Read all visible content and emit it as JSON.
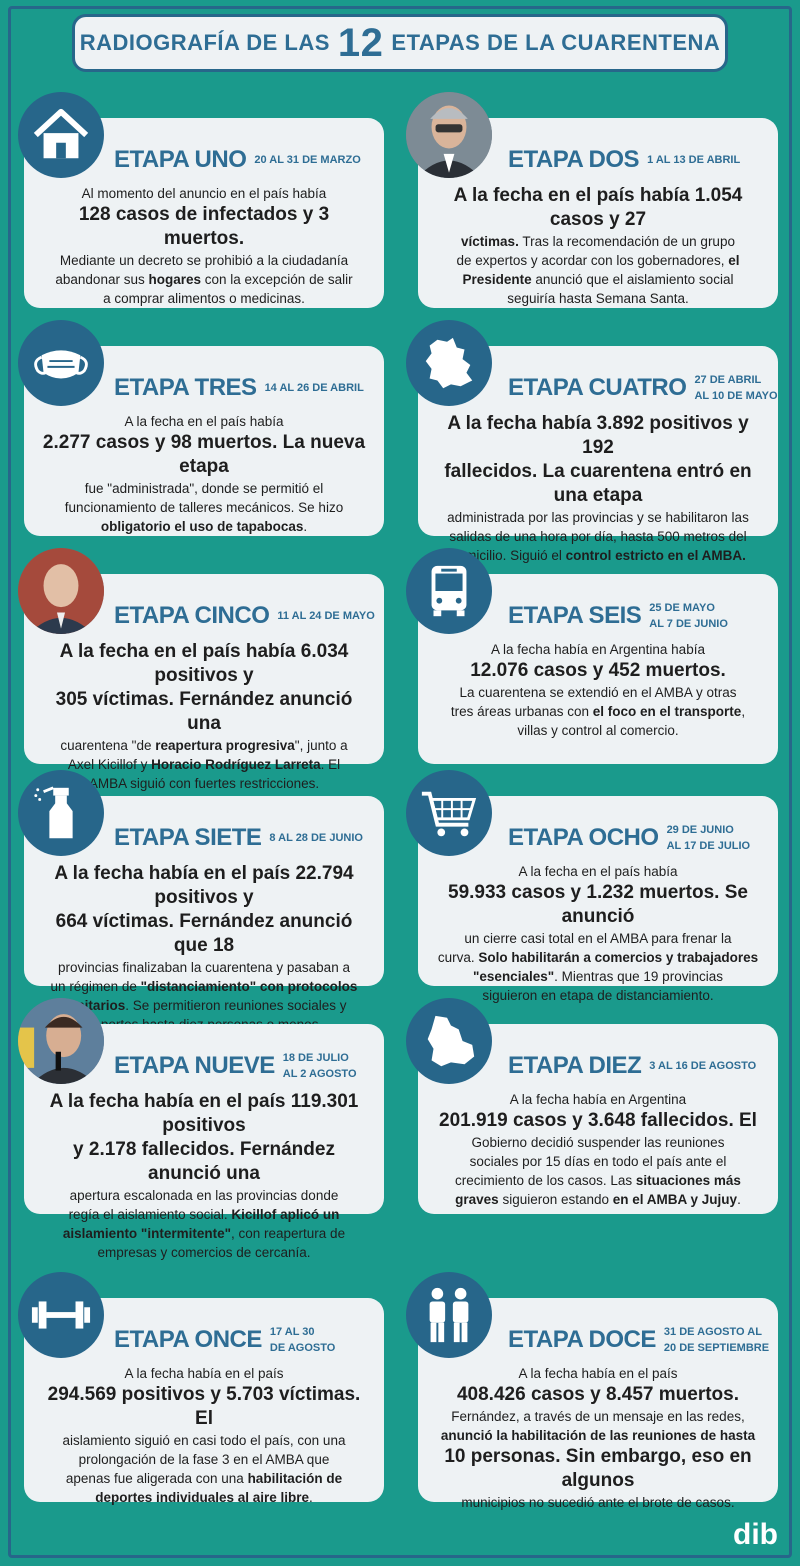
{
  "title": {
    "pre": "RADIOGRAFÍA DE LAS",
    "number": "12",
    "post": "ETAPAS DE LA CUARENTENA"
  },
  "logo": "dib",
  "stages": [
    {
      "name": "ETAPA UNO",
      "dates": [
        "20 AL 31 DE MARZO"
      ],
      "icon": "house-icon",
      "text": "Al momento del anuncio en el país había|**128 casos de infectados** y **3 muertos.**|Mediante un decreto se prohibió a la ciudadanía|abandonar sus **hogares** con la excepción de salir|a comprar alimentos o medicinas."
    },
    {
      "name": "ETAPA DOS",
      "dates": [
        "1 AL 13 DE ABRIL"
      ],
      "icon": "photo-president",
      "text": "A la fecha en el país había **1.054 casos y 27**|**víctimas.** Tras la recomendación de un grupo|de expertos y acordar con los gobernadores, **el**|**Presidente** anunció que el aislamiento social|seguiría hasta Semana Santa."
    },
    {
      "name": "ETAPA TRES",
      "dates": [
        "14 AL 26 DE ABRIL"
      ],
      "icon": "face-mask-icon",
      "text": "A la fecha en el país había|**2.277 casos y 98 muertos.** La nueva etapa|fue \"administrada\", donde se permitió el|funcionamiento de talleres mecánicos. Se hizo|**obligatorio el uso de tapabocas**."
    },
    {
      "name": "ETAPA CUATRO",
      "dates": [
        "27 DE ABRIL",
        "AL 10 DE MAYO"
      ],
      "icon": "province-map-icon",
      "text": "A la fecha había **3.892 positivos y 192**|**fallecidos.** La cuarentena entró en una etapa|administrada por las provincias y se habilitaron las|salidas de una hora por día, hasta 500 metros del|domicilio. Siguió el **control estricto en el AMBA.**"
    },
    {
      "name": "ETAPA CINCO",
      "dates": [
        "11 AL 24 DE MAYO"
      ],
      "icon": "photo-larreta",
      "text": "A la fecha en el país había **6.034 positivos y**|**305 víctimas.** Fernández anunció una|cuarentena \"de **reapertura progresiva**\", junto a|Axel Kicillof y **Horacio Rodríguez Larreta**. El|AMBA siguió con fuertes restricciones."
    },
    {
      "name": "ETAPA SEIS",
      "dates": [
        "25 DE MAYO",
        "AL 7 DE JUNIO"
      ],
      "icon": "bus-icon",
      "text": "A la fecha había en Argentina había|**12.076 casos y 452 muertos.**|La cuarentena se extendió en el AMBA y otras|tres áreas urbanas con **el foco en el transporte**,|villas y control al comercio."
    },
    {
      "name": "ETAPA SIETE",
      "dates": [
        "8 AL 28 DE JUNIO"
      ],
      "icon": "spray-bottle-icon",
      "text": "A la fecha había en el país **22.794 positivos y**|**664 víctimas.** Fernández anunció que 18|provincias finalizaban la cuarentena y pasaban a|un régimen de **\"distanciamiento\" con protocolos**|**sanitarios**. Se permitieron reuniones sociales y|deportes hasta diez personas o menos."
    },
    {
      "name": "ETAPA OCHO",
      "dates": [
        "29 DE JUNIO",
        "AL 17 DE JULIO"
      ],
      "icon": "shopping-cart-icon",
      "text": "A la fecha en el país había|**59.933 casos y 1.232 muertos.** Se anunció|un cierre casi total en el AMBA para frenar la|curva. **Solo habilitarán a comercios y trabajadores**|**\"esenciales\"**. Mientras que 19 provincias|siguieron en etapa de distanciamiento."
    },
    {
      "name": "ETAPA NUEVE",
      "dates": [
        "18 DE JULIO",
        "AL 2 AGOSTO"
      ],
      "icon": "photo-kicillof",
      "text": "A la fecha había en el país **119.301 positivos**|**y 2.178 fallecidos.** Fernández anunció una|apertura escalonada en las provincias donde|regía el aislamiento social. **Kicillof aplicó un**|**aislamiento \"intermitente\"**, con reapertura de|empresas y comercios de cercanía."
    },
    {
      "name": "ETAPA DIEZ",
      "dates": [
        "3 AL 16 DE AGOSTO"
      ],
      "icon": "region-map-icon",
      "text": "A la fecha había en Argentina|**201.919 casos y 3.648 fallecidos.** El|Gobierno decidió suspender las reuniones|sociales por 15 días en todo el país ante el|crecimiento de los casos. Las **situaciones más**|**graves** siguieron estando **en el AMBA y Jujuy**."
    },
    {
      "name": "ETAPA ONCE",
      "dates": [
        "17 AL 30",
        "DE AGOSTO"
      ],
      "icon": "dumbbell-icon",
      "text": "A la fecha había en el país|**294.569 positivos y 5.703 víctimas.** El|aislamiento siguió en casi todo el país, con una|prolongación de la fase 3 en el AMBA que|apenas fue aligerada con una **habilitación de**|**deportes individuales al aire libre**."
    },
    {
      "name": "ETAPA DOCE",
      "dates": [
        "31 DE AGOSTO AL",
        "20 DE SEPTIEMBRE"
      ],
      "icon": "people-icon",
      "text": "A la fecha había en el país|**408.426 casos y 8.457 muertos.**|Fernández, a través de un mensaje en las redes,|**anunció la habilitación de las reuniones de hasta**|**10 personas**. Sin embargo, eso en algunos|municipios no sucedió ante el brote de casos."
    }
  ]
}
